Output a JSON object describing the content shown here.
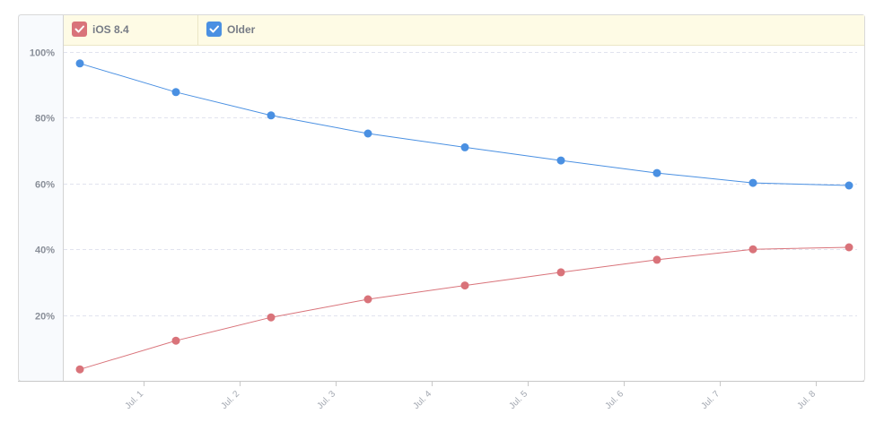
{
  "colors": {
    "series_ios84": "#d9737a",
    "series_older": "#4a90e2",
    "legend_background": "#fefbe5",
    "plot_left_panel": "#f8fafd",
    "grid": "#e1e3ee",
    "axis": "#d3d3d3"
  },
  "legend": {
    "items": [
      {
        "label": "iOS 8.4",
        "color": "#d9737a",
        "checked": true,
        "icon": "checkbox-checked-icon"
      },
      {
        "label": "Older",
        "color": "#4a90e2",
        "checked": true,
        "icon": "checkbox-checked-icon"
      }
    ]
  },
  "chart_data": {
    "type": "line",
    "title": "",
    "xlabel": "",
    "ylabel": "",
    "ylim": [
      0,
      100
    ],
    "y_ticks": [
      20,
      40,
      60,
      80,
      100
    ],
    "y_tick_labels": [
      "20%",
      "40%",
      "60%",
      "80%",
      "100%"
    ],
    "x_tick_labels": [
      "Jul. 1",
      "Jul. 2",
      "Jul. 3",
      "Jul. 4",
      "Jul. 5",
      "Jul. 6",
      "Jul. 7",
      "Jul. 8"
    ],
    "grid": true,
    "legend_position": "top",
    "series": [
      {
        "name": "iOS 8.4",
        "color": "#d9737a",
        "values": [
          3.5,
          12.2,
          19.3,
          24.8,
          29.0,
          33.0,
          36.8,
          40.0,
          40.6
        ]
      },
      {
        "name": "Older",
        "color": "#4a90e2",
        "values": [
          96.5,
          87.8,
          80.7,
          75.2,
          71.0,
          67.0,
          63.2,
          60.2,
          59.4
        ]
      }
    ]
  }
}
